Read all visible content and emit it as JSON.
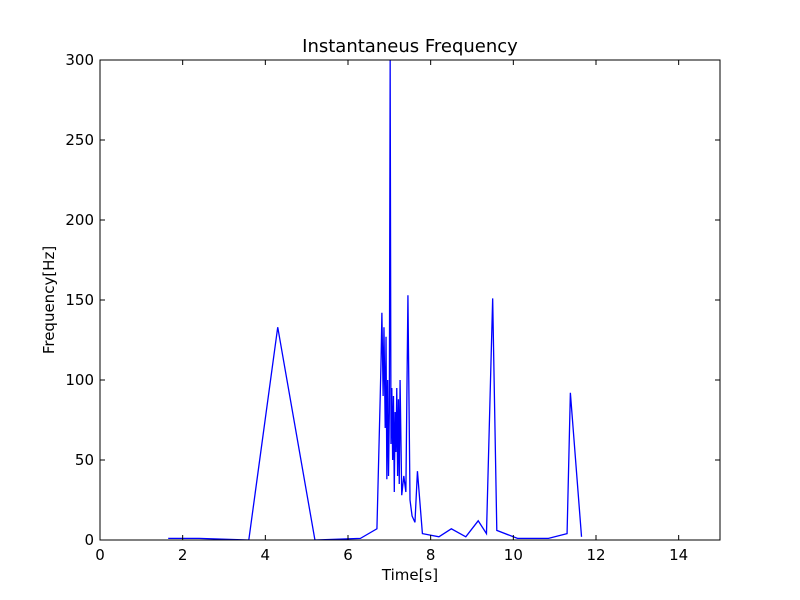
{
  "chart_data": {
    "type": "line",
    "title": "Instantaneus Frequency",
    "xlabel": "Time[s]",
    "ylabel": "Frequency[Hz]",
    "xlim": [
      0,
      15
    ],
    "ylim": [
      0,
      300
    ],
    "xticks": [
      0,
      2,
      4,
      6,
      8,
      10,
      12,
      14
    ],
    "yticks": [
      0,
      50,
      100,
      150,
      200,
      250,
      300
    ],
    "grid": false,
    "line_color": "#0000ff",
    "series": [
      {
        "x": [
          1.65,
          2.4,
          3.6,
          4.3,
          5.2,
          6.3,
          6.7,
          6.78,
          6.8,
          6.82,
          6.85,
          6.87,
          6.9,
          6.92,
          6.94,
          6.96,
          6.98,
          7.0,
          7.02,
          7.04,
          7.06,
          7.08,
          7.1,
          7.12,
          7.14,
          7.16,
          7.18,
          7.2,
          7.22,
          7.24,
          7.26,
          7.3,
          7.35,
          7.4,
          7.45,
          7.5,
          7.55,
          7.62,
          7.68,
          7.8,
          8.2,
          8.5,
          8.85,
          9.15,
          9.35,
          9.5,
          9.6,
          10.1,
          10.85,
          11.3,
          11.38,
          11.65
        ],
        "y": [
          1,
          1,
          0,
          133,
          0,
          1,
          7,
          90,
          113,
          142,
          90,
          133,
          70,
          127,
          38,
          100,
          40,
          80,
          300,
          60,
          95,
          50,
          90,
          30,
          80,
          55,
          95,
          40,
          88,
          35,
          100,
          28,
          40,
          30,
          153,
          25,
          15,
          11,
          43,
          4,
          2,
          7,
          2,
          12,
          4,
          151,
          6,
          1,
          1,
          4,
          92,
          2
        ]
      }
    ]
  }
}
